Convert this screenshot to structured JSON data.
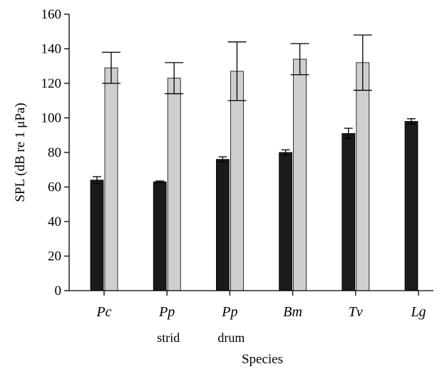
{
  "chart_data": {
    "type": "bar",
    "title": "",
    "xlabel": "Species",
    "ylabel": "SPL (dB re 1 μPa)",
    "ylim": [
      0,
      160
    ],
    "yticks": [
      0,
      20,
      40,
      60,
      80,
      100,
      120,
      140,
      160
    ],
    "grid": false,
    "legend": "none",
    "categories": [
      {
        "name": "Pc",
        "sub": ""
      },
      {
        "name": "Pp",
        "sub": "strid"
      },
      {
        "name": "Pp",
        "sub": "drum"
      },
      {
        "name": "Bm",
        "sub": ""
      },
      {
        "name": "Tv",
        "sub": ""
      },
      {
        "name": "Lg",
        "sub": ""
      }
    ],
    "series": [
      {
        "color": "#1a1a1a",
        "values": [
          64,
          63,
          76,
          80,
          91,
          98
        ],
        "error": [
          2,
          0.5,
          1.5,
          1.5,
          3,
          1.5
        ]
      },
      {
        "color": "#cfcfcf",
        "values": [
          129,
          123,
          127,
          134,
          132,
          null
        ],
        "error": [
          9,
          9,
          17,
          9,
          16,
          null
        ]
      }
    ]
  }
}
